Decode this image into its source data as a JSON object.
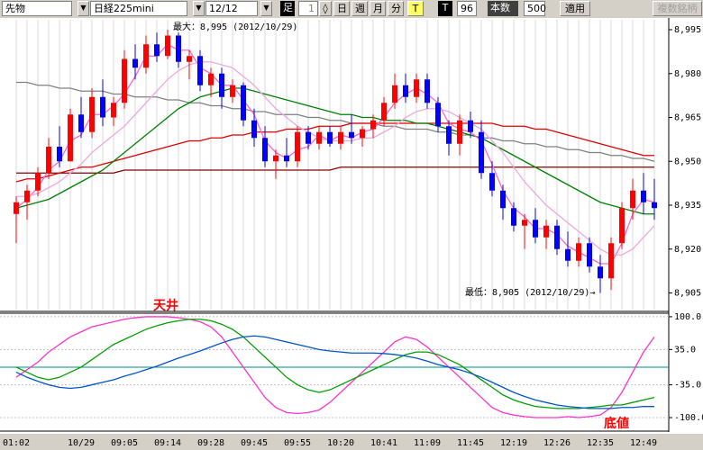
{
  "toolbar": {
    "symbol_type": "先物",
    "symbol": "日経225mini",
    "contract": "12/12",
    "bar_label": "足",
    "bar_unit": "1",
    "periods": [
      "日",
      "週",
      "月",
      "分"
    ],
    "t_yellow": "T",
    "t_black": "T",
    "count_value": "96",
    "count_label": "本数",
    "count_input": "500",
    "apply": "適用",
    "multi": "複数銘柄"
  },
  "chart_data": [
    {
      "type": "candlestick",
      "categories": [
        "01:02",
        null,
        null,
        null,
        null,
        null,
        "10/29",
        null,
        null,
        null,
        "09:05",
        null,
        null,
        null,
        "09:14",
        null,
        null,
        null,
        "09:28",
        null,
        null,
        null,
        "09:45",
        null,
        null,
        null,
        "09:55",
        null,
        null,
        null,
        "10:20",
        null,
        null,
        null,
        "10:41",
        null,
        null,
        null,
        "11:09",
        null,
        null,
        null,
        "11:45",
        null,
        null,
        null,
        "12:19",
        null,
        null,
        null,
        "12:26",
        null,
        null,
        null,
        "12:35",
        null,
        null,
        null,
        "12:49",
        null
      ],
      "open": [
        8932,
        8936,
        8940,
        8946,
        8955,
        8950,
        8966,
        8960,
        8972,
        8965,
        8970,
        8985,
        8982,
        8990,
        8986,
        8993,
        8984,
        8986,
        8976,
        8980,
        8972,
        8976,
        8964,
        8958,
        8950,
        8952,
        8950,
        8960,
        8956,
        8960,
        8956,
        8960,
        8958,
        8961,
        8964,
        8970,
        8976,
        8972,
        8978,
        8970,
        8962,
        8956,
        8964,
        8960,
        8946,
        8940,
        8934,
        8928,
        8930,
        8924,
        8928,
        8920,
        8916,
        8922,
        8914,
        8910,
        8922,
        8934,
        8940,
        8936
      ],
      "high": [
        8938,
        8942,
        8948,
        8958,
        8962,
        8968,
        8972,
        8975,
        8978,
        8972,
        8988,
        8990,
        8993,
        8994,
        8995,
        8994,
        8988,
        8988,
        8982,
        8982,
        8978,
        8977,
        8968,
        8962,
        8954,
        8958,
        8962,
        8962,
        8962,
        8962,
        8962,
        8966,
        8962,
        8966,
        8972,
        8980,
        8980,
        8980,
        8980,
        8972,
        8964,
        8966,
        8967,
        8964,
        8950,
        8942,
        8936,
        8932,
        8934,
        8930,
        8930,
        8926,
        8924,
        8924,
        8918,
        8924,
        8936,
        8944,
        8946,
        8944
      ],
      "low": [
        8922,
        8930,
        8938,
        8944,
        8948,
        8950,
        8958,
        8958,
        8962,
        8962,
        8968,
        8978,
        8980,
        8984,
        8985,
        8982,
        8978,
        8974,
        8972,
        8968,
        8970,
        8962,
        8955,
        8948,
        8944,
        8948,
        8948,
        8954,
        8954,
        8955,
        8954,
        8956,
        8955,
        8958,
        8962,
        8968,
        8970,
        8970,
        8968,
        8960,
        8952,
        8952,
        8958,
        8944,
        8938,
        8930,
        8926,
        8920,
        8922,
        8920,
        8918,
        8914,
        8914,
        8912,
        8905,
        8906,
        8920,
        8930,
        8932,
        8930
      ],
      "close": [
        8936,
        8940,
        8946,
        8955,
        8950,
        8966,
        8960,
        8972,
        8965,
        8970,
        8985,
        8982,
        8990,
        8986,
        8993,
        8984,
        8986,
        8976,
        8980,
        8972,
        8976,
        8964,
        8958,
        8950,
        8952,
        8950,
        8960,
        8956,
        8960,
        8956,
        8960,
        8958,
        8961,
        8964,
        8970,
        8976,
        8972,
        8978,
        8970,
        8962,
        8956,
        8964,
        8960,
        8946,
        8940,
        8934,
        8928,
        8930,
        8924,
        8928,
        8920,
        8916,
        8922,
        8914,
        8910,
        8922,
        8934,
        8940,
        8936,
        8934
      ],
      "up_color": "#ff0000",
      "down_color": "#0000ff",
      "series": [
        {
          "color": "#808080",
          "values": [
            8977,
            8977,
            8976,
            8976,
            8975,
            8975,
            8974,
            8974,
            8974,
            8973,
            8973,
            8972,
            8972,
            8972,
            8971,
            8971,
            8970,
            8970,
            8969,
            8969,
            8968,
            8968,
            8967,
            8967,
            8966,
            8966,
            8966,
            8965,
            8965,
            8964,
            8964,
            8963,
            8963,
            8963,
            8962,
            8962,
            8961,
            8961,
            8961,
            8960,
            8960,
            8959,
            8959,
            8958,
            8958,
            8957,
            8957,
            8956,
            8956,
            8955,
            8955,
            8954,
            8954,
            8953,
            8953,
            8952,
            8952,
            8951,
            8951,
            8950
          ]
        },
        {
          "color": "#8b0000",
          "values": [
            8946,
            8946,
            8946,
            8946,
            8946,
            8946,
            8946,
            8946,
            8946,
            8946,
            8947,
            8947,
            8947,
            8947,
            8947,
            8947,
            8947,
            8947,
            8947,
            8947,
            8947,
            8947,
            8947,
            8947,
            8947,
            8947,
            8947,
            8947,
            8947,
            8947,
            8948,
            8948,
            8948,
            8948,
            8948,
            8948,
            8948,
            8948,
            8948,
            8948,
            8948,
            8948,
            8948,
            8948,
            8948,
            8948,
            8948,
            8948,
            8948,
            8948,
            8948,
            8948,
            8948,
            8948,
            8948,
            8948,
            8948,
            8948,
            8948,
            8948
          ]
        },
        {
          "color": "#e00000",
          "values": [
            8943,
            8944,
            8944,
            8945,
            8946,
            8947,
            8948,
            8948,
            8949,
            8950,
            8951,
            8952,
            8953,
            8954,
            8955,
            8956,
            8957,
            8957,
            8958,
            8958,
            8959,
            8959,
            8960,
            8960,
            8960,
            8961,
            8961,
            8961,
            8962,
            8962,
            8962,
            8963,
            8963,
            8963,
            8963,
            8963,
            8963,
            8963,
            8963,
            8963,
            8963,
            8963,
            8963,
            8963,
            8963,
            8962,
            8962,
            8962,
            8961,
            8961,
            8960,
            8959,
            8958,
            8957,
            8956,
            8955,
            8954,
            8953,
            8952,
            8952
          ]
        },
        {
          "color": "#008000",
          "values": [
            8934,
            8935,
            8936,
            8937,
            8939,
            8941,
            8943,
            8945,
            8947,
            8950,
            8953,
            8956,
            8959,
            8962,
            8965,
            8968,
            8970,
            8972,
            8973,
            8974,
            8975,
            8975,
            8974,
            8973,
            8972,
            8971,
            8970,
            8969,
            8968,
            8967,
            8966,
            8966,
            8965,
            8965,
            8964,
            8964,
            8964,
            8963,
            8963,
            8962,
            8961,
            8960,
            8959,
            8958,
            8956,
            8954,
            8952,
            8950,
            8948,
            8946,
            8944,
            8942,
            8940,
            8938,
            8936,
            8935,
            8934,
            8933,
            8932,
            8932
          ]
        },
        {
          "color": "#ff66cc",
          "values": [
            8934,
            8937,
            8941,
            8947,
            8950,
            8957,
            8959,
            8966,
            8966,
            8969,
            8973,
            8979,
            8986,
            8986,
            8990,
            8988,
            8988,
            8982,
            8980,
            8976,
            8976,
            8971,
            8966,
            8957,
            8953,
            8951,
            8954,
            8955,
            8959,
            8957,
            8959,
            8958,
            8960,
            8961,
            8965,
            8970,
            8973,
            8975,
            8973,
            8970,
            8963,
            8961,
            8960,
            8957,
            8949,
            8940,
            8934,
            8931,
            8927,
            8927,
            8925,
            8921,
            8919,
            8917,
            8915,
            8915,
            8922,
            8932,
            8937,
            8936
          ]
        },
        {
          "color": "#f0a8e0",
          "values": [
            8938,
            8938,
            8939,
            8941,
            8943,
            8946,
            8949,
            8953,
            8956,
            8959,
            8962,
            8966,
            8970,
            8974,
            8978,
            8981,
            8983,
            8984,
            8984,
            8983,
            8982,
            8979,
            8976,
            8972,
            8968,
            8965,
            8962,
            8960,
            8958,
            8957,
            8957,
            8957,
            8958,
            8958,
            8960,
            8962,
            8965,
            8967,
            8968,
            8968,
            8967,
            8965,
            8963,
            8961,
            8957,
            8953,
            8948,
            8943,
            8939,
            8935,
            8932,
            8929,
            8926,
            8923,
            8920,
            8918,
            8918,
            8920,
            8924,
            8928
          ]
        }
      ],
      "ylim": [
        8899,
        8999
      ],
      "yticks": [
        {
          "value": 8995,
          "label": "8,995"
        },
        {
          "value": 8980,
          "label": "8,980"
        },
        {
          "value": 8965,
          "label": "8,965"
        },
        {
          "value": 8950,
          "label": "8,950"
        },
        {
          "value": 8935,
          "label": "8,935"
        },
        {
          "value": 8920,
          "label": "8,920"
        },
        {
          "value": 8905,
          "label": "8,905"
        }
      ],
      "annotations": [
        "最大：8,995 (2012/10/29)",
        "最低：8,905 (2012/10/29)→"
      ]
    },
    {
      "type": "line",
      "series": [
        {
          "color": "#ff33cc",
          "values": [
            -20,
            -5,
            10,
            30,
            45,
            60,
            70,
            80,
            85,
            90,
            95,
            98,
            100,
            100,
            100,
            98,
            95,
            90,
            80,
            60,
            30,
            0,
            -30,
            -60,
            -80,
            -90,
            -92,
            -90,
            -85,
            -70,
            -50,
            -30,
            -10,
            10,
            30,
            50,
            60,
            55,
            40,
            20,
            0,
            -20,
            -40,
            -60,
            -80,
            -90,
            -95,
            -98,
            -100,
            -100,
            -100,
            -98,
            -100,
            -98,
            -95,
            -80,
            -50,
            -10,
            30,
            60
          ]
        },
        {
          "color": "#00a000",
          "values": [
            0,
            -10,
            -20,
            -25,
            -20,
            -10,
            0,
            15,
            30,
            45,
            55,
            65,
            75,
            82,
            88,
            92,
            95,
            95,
            92,
            85,
            75,
            60,
            40,
            20,
            0,
            -20,
            -35,
            -45,
            -50,
            -45,
            -35,
            -25,
            -15,
            -5,
            5,
            15,
            25,
            30,
            30,
            25,
            15,
            5,
            -10,
            -25,
            -40,
            -55,
            -65,
            -72,
            -78,
            -80,
            -82,
            -82,
            -82,
            -80,
            -78,
            -75,
            -75,
            -70,
            -65,
            -60
          ]
        },
        {
          "color": "#0055cc",
          "values": [
            -10,
            -20,
            -28,
            -35,
            -40,
            -42,
            -40,
            -35,
            -30,
            -25,
            -18,
            -12,
            -5,
            2,
            10,
            18,
            25,
            32,
            40,
            48,
            55,
            60,
            62,
            60,
            55,
            50,
            45,
            40,
            35,
            32,
            30,
            28,
            28,
            28,
            27,
            25,
            22,
            18,
            12,
            5,
            0,
            -5,
            -12,
            -20,
            -30,
            -40,
            -50,
            -58,
            -65,
            -70,
            -75,
            -78,
            -80,
            -82,
            -82,
            -82,
            -80,
            -80,
            -78,
            -78
          ]
        }
      ],
      "reference_line": {
        "value": 0,
        "color": "#008b8b"
      },
      "ylim": [
        -125,
        107
      ],
      "yticks": [
        {
          "value": 100,
          "label": "100.0"
        },
        {
          "value": 35,
          "label": "35.0"
        },
        {
          "value": -35,
          "label": "-35.0"
        },
        {
          "value": -100,
          "label": "-100.0"
        }
      ],
      "annotations": [
        "天井",
        "底値"
      ]
    }
  ]
}
